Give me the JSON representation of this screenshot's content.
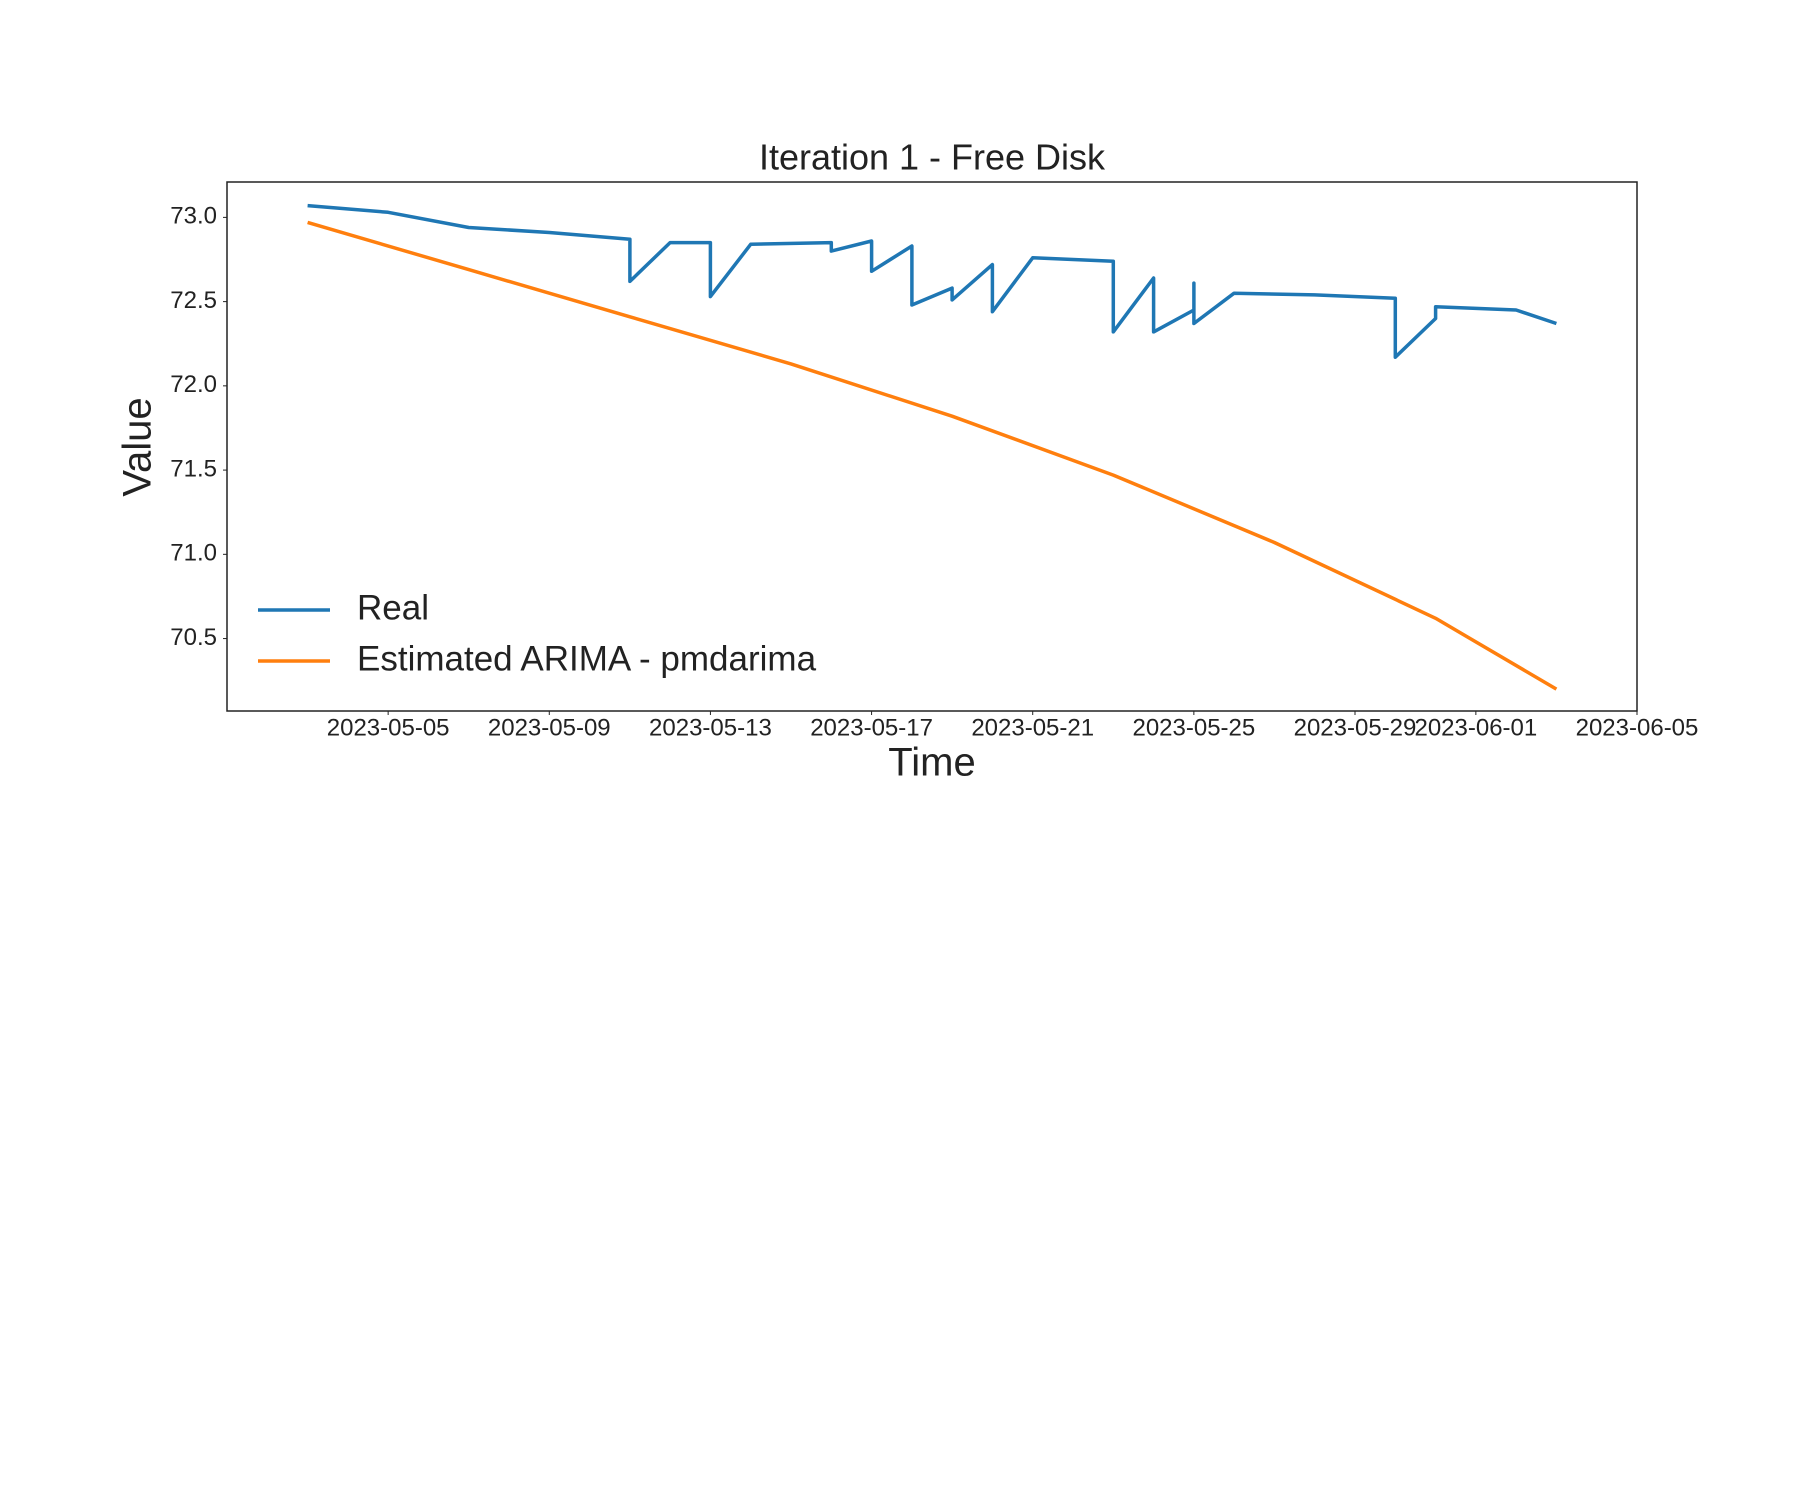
{
  "chart_data": {
    "type": "line",
    "title": "Iteration 1 - Free Disk",
    "x_label": "Time",
    "y_label": "Value",
    "xlim": [
      "2023-05-01",
      "2023-06-05"
    ],
    "xticks": [
      "2023-05-05",
      "2023-05-09",
      "2023-05-13",
      "2023-05-17",
      "2023-05-21",
      "2023-05-25",
      "2023-05-29",
      "2023-06-01",
      "2023-06-05"
    ],
    "ylim": [
      70.07,
      73.21
    ],
    "yticks": [
      70.5,
      {
        "value": 71,
        "label": "71.0"
      },
      71.5,
      {
        "value": 72,
        "label": "72.0"
      },
      72.5,
      {
        "value": 73,
        "label": "73.0"
      }
    ],
    "grid": false,
    "legend": "lower left",
    "series": [
      {
        "name": "Real",
        "color": "#1f77b4",
        "x": [
          "2023-05-03",
          "2023-05-05",
          "2023-05-07",
          "2023-05-09",
          "2023-05-10",
          "2023-05-11",
          "2023-05-11",
          "2023-05-12",
          "2023-05-13",
          "2023-05-13",
          "2023-05-14",
          "2023-05-16",
          "2023-05-16",
          "2023-05-17",
          "2023-05-17",
          "2023-05-18",
          "2023-05-18",
          "2023-05-19",
          "2023-05-19",
          "2023-05-20",
          "2023-05-20",
          "2023-05-21",
          "2023-05-22",
          "2023-05-23",
          "2023-05-23",
          "2023-05-24",
          "2023-05-24",
          "2023-05-25",
          "2023-05-25",
          "2023-05-25",
          "2023-05-26",
          "2023-05-28",
          "2023-05-30",
          "2023-05-30",
          "2023-05-31",
          "2023-05-31",
          "2023-06-02",
          "2023-06-03"
        ],
        "values": [
          73.07,
          73.03,
          72.94,
          72.91,
          72.89,
          72.87,
          72.62,
          72.85,
          72.85,
          72.53,
          72.84,
          72.85,
          72.8,
          72.86,
          72.68,
          72.83,
          72.48,
          72.58,
          72.51,
          72.72,
          72.44,
          72.76,
          72.75,
          72.74,
          72.32,
          72.64,
          72.32,
          72.45,
          72.61,
          72.37,
          72.55,
          72.54,
          72.52,
          72.17,
          72.4,
          72.47,
          72.45,
          72.37
        ]
      },
      {
        "name": "Estimated ARIMA - pmdarima",
        "color": "#ff7f0e",
        "x": [
          "2023-05-03",
          "2023-05-07",
          "2023-05-11",
          "2023-05-15",
          "2023-05-19",
          "2023-05-23",
          "2023-05-27",
          "2023-05-31",
          "2023-06-03"
        ],
        "values": [
          72.97,
          72.69,
          72.41,
          72.13,
          71.82,
          71.47,
          71.07,
          70.62,
          70.2
        ]
      }
    ]
  }
}
